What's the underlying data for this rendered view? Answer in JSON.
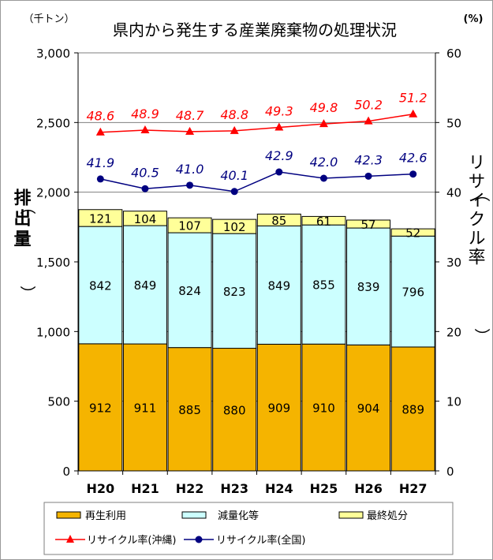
{
  "chart_data": {
    "type": "bar",
    "title": "県内から発生する産業廃棄物の処理状況",
    "left_unit": "（千トン）",
    "right_unit": "(%)",
    "ylabel": "排出量",
    "ylabel_paren_open": "（",
    "ylabel_paren_close": "）",
    "y2label": "リサイクル率",
    "y2label_paren_open": "（",
    "y2label_paren_close": "）",
    "categories": [
      "H20",
      "H21",
      "H22",
      "H23",
      "H24",
      "H25",
      "H26",
      "H27"
    ],
    "ylim": [
      0,
      3000
    ],
    "yticks": [
      0,
      500,
      1000,
      1500,
      2000,
      2500,
      3000
    ],
    "ytick_labels": [
      "0",
      "500",
      "1,000",
      "1,500",
      "2,000",
      "2,500",
      "3,000"
    ],
    "y2lim": [
      0,
      60
    ],
    "y2ticks": [
      0,
      10,
      20,
      30,
      40,
      50,
      60
    ],
    "y2tick_labels": [
      "0",
      "10",
      "20",
      "30",
      "40",
      "50",
      "60"
    ],
    "grid": true,
    "legend_position": "bottom",
    "bar_series": [
      {
        "name": "再生利用",
        "values": [
          912,
          911,
          885,
          880,
          909,
          910,
          904,
          889
        ],
        "color": "#f5b400"
      },
      {
        "name": "減量化等",
        "values": [
          842,
          849,
          824,
          823,
          849,
          855,
          839,
          796
        ],
        "color": "#ccffff"
      },
      {
        "name": "最終処分",
        "values": [
          121,
          104,
          107,
          102,
          85,
          61,
          57,
          52
        ],
        "color": "#ffff99"
      }
    ],
    "line_series": [
      {
        "name": "リサイクル率(沖縄)",
        "values": [
          48.6,
          48.9,
          48.7,
          48.8,
          49.3,
          49.8,
          50.2,
          51.2
        ],
        "labels": [
          "48.6",
          "48.9",
          "48.7",
          "48.8",
          "49.3",
          "49.8",
          "50.2",
          "51.2"
        ],
        "color": "#ff0000",
        "marker": "triangle"
      },
      {
        "name": "リサイクル率(全国)",
        "values": [
          41.9,
          40.5,
          41.0,
          40.1,
          42.9,
          42.0,
          42.3,
          42.6
        ],
        "labels": [
          "41.9",
          "40.5",
          "41.0",
          "40.1",
          "42.9",
          "42.0",
          "42.3",
          "42.6"
        ],
        "color": "#000080",
        "marker": "circle"
      }
    ]
  }
}
